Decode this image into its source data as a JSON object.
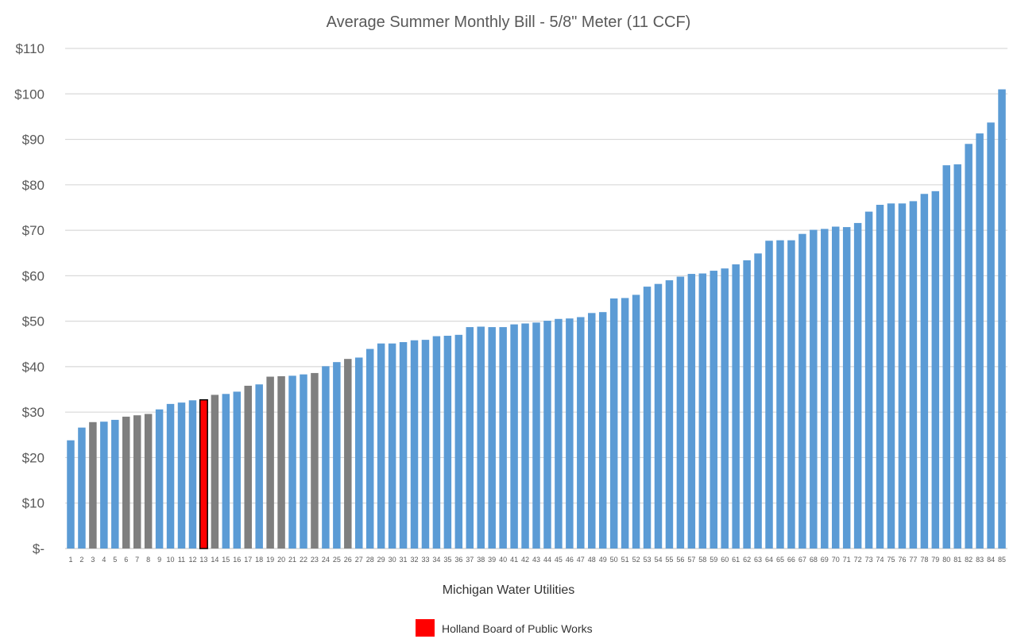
{
  "chart_data": {
    "type": "bar",
    "title": "Average Summer Monthly Bill - 5/8\" Meter (11 CCF)",
    "xlabel": "Michigan Water Utilities",
    "ylabel": "",
    "ylim": [
      0,
      110
    ],
    "yticks": [
      0,
      10,
      20,
      30,
      40,
      50,
      60,
      70,
      80,
      90,
      100,
      110
    ],
    "ytick_labels": [
      "$-",
      "$10",
      "$20",
      "$30",
      "$40",
      "$50",
      "$60",
      "$70",
      "$80",
      "$90",
      "$100",
      "$110"
    ],
    "grid": true,
    "categories": [
      "1",
      "2",
      "3",
      "4",
      "5",
      "6",
      "7",
      "8",
      "9",
      "10",
      "11",
      "12",
      "13",
      "14",
      "15",
      "16",
      "17",
      "18",
      "19",
      "20",
      "21",
      "22",
      "23",
      "24",
      "25",
      "26",
      "27",
      "28",
      "29",
      "30",
      "31",
      "32",
      "33",
      "34",
      "35",
      "36",
      "37",
      "38",
      "39",
      "40",
      "41",
      "42",
      "43",
      "44",
      "45",
      "46",
      "47",
      "48",
      "49",
      "50",
      "51",
      "52",
      "53",
      "54",
      "55",
      "56",
      "57",
      "58",
      "59",
      "60",
      "61",
      "62",
      "63",
      "64",
      "65",
      "66",
      "67",
      "68",
      "69",
      "70",
      "71",
      "72",
      "73",
      "74",
      "75",
      "76",
      "77",
      "78",
      "79",
      "80",
      "81",
      "82",
      "83",
      "84",
      "85"
    ],
    "values": [
      23.8,
      26.6,
      27.8,
      27.9,
      28.3,
      29.0,
      29.3,
      29.6,
      30.6,
      31.8,
      32.1,
      32.6,
      32.7,
      33.8,
      34.0,
      34.5,
      35.8,
      36.1,
      37.8,
      37.9,
      38.0,
      38.3,
      38.6,
      40.1,
      41.0,
      41.7,
      42.0,
      43.9,
      45.1,
      45.1,
      45.4,
      45.8,
      45.9,
      46.7,
      46.8,
      47.0,
      48.7,
      48.8,
      48.7,
      48.7,
      49.3,
      49.5,
      49.7,
      50.1,
      50.5,
      50.6,
      50.9,
      51.8,
      52.0,
      55.0,
      55.1,
      55.8,
      57.6,
      58.2,
      59.0,
      59.8,
      60.4,
      60.5,
      61.1,
      61.6,
      62.5,
      63.4,
      64.9,
      67.7,
      67.8,
      67.8,
      69.2,
      70.1,
      70.3,
      70.8,
      70.7,
      71.6,
      74.1,
      75.6,
      75.9,
      75.9,
      76.4,
      78.0,
      78.6,
      84.3,
      84.5,
      89.0,
      91.3,
      93.7,
      101.0
    ],
    "bar_groups": [
      "blue",
      "blue",
      "gray",
      "blue",
      "blue",
      "gray",
      "gray",
      "gray",
      "blue",
      "blue",
      "blue",
      "blue",
      "highlight",
      "gray",
      "blue",
      "blue",
      "gray",
      "blue",
      "gray",
      "gray",
      "blue",
      "blue",
      "gray",
      "blue",
      "blue",
      "gray",
      "blue",
      "blue",
      "blue",
      "blue",
      "blue",
      "blue",
      "blue",
      "blue",
      "blue",
      "blue",
      "blue",
      "blue",
      "blue",
      "blue",
      "blue",
      "blue",
      "blue",
      "blue",
      "blue",
      "blue",
      "blue",
      "blue",
      "blue",
      "blue",
      "blue",
      "blue",
      "blue",
      "blue",
      "blue",
      "blue",
      "blue",
      "blue",
      "blue",
      "blue",
      "blue",
      "blue",
      "blue",
      "blue",
      "blue",
      "blue",
      "blue",
      "blue",
      "blue",
      "blue",
      "blue",
      "blue",
      "blue",
      "blue",
      "blue",
      "blue",
      "blue",
      "blue",
      "blue",
      "blue",
      "blue",
      "blue",
      "blue",
      "blue",
      "blue"
    ],
    "colors": {
      "blue": "#5b9bd5",
      "gray": "#7f7f7f",
      "highlight": "#ff0000",
      "highlight_border": "#000000",
      "grid": "#d9d9d9"
    },
    "legend": {
      "placement": "bottom",
      "entries": [
        {
          "label": "Holland Board of Public Works",
          "color": "#ff0000"
        }
      ]
    }
  }
}
